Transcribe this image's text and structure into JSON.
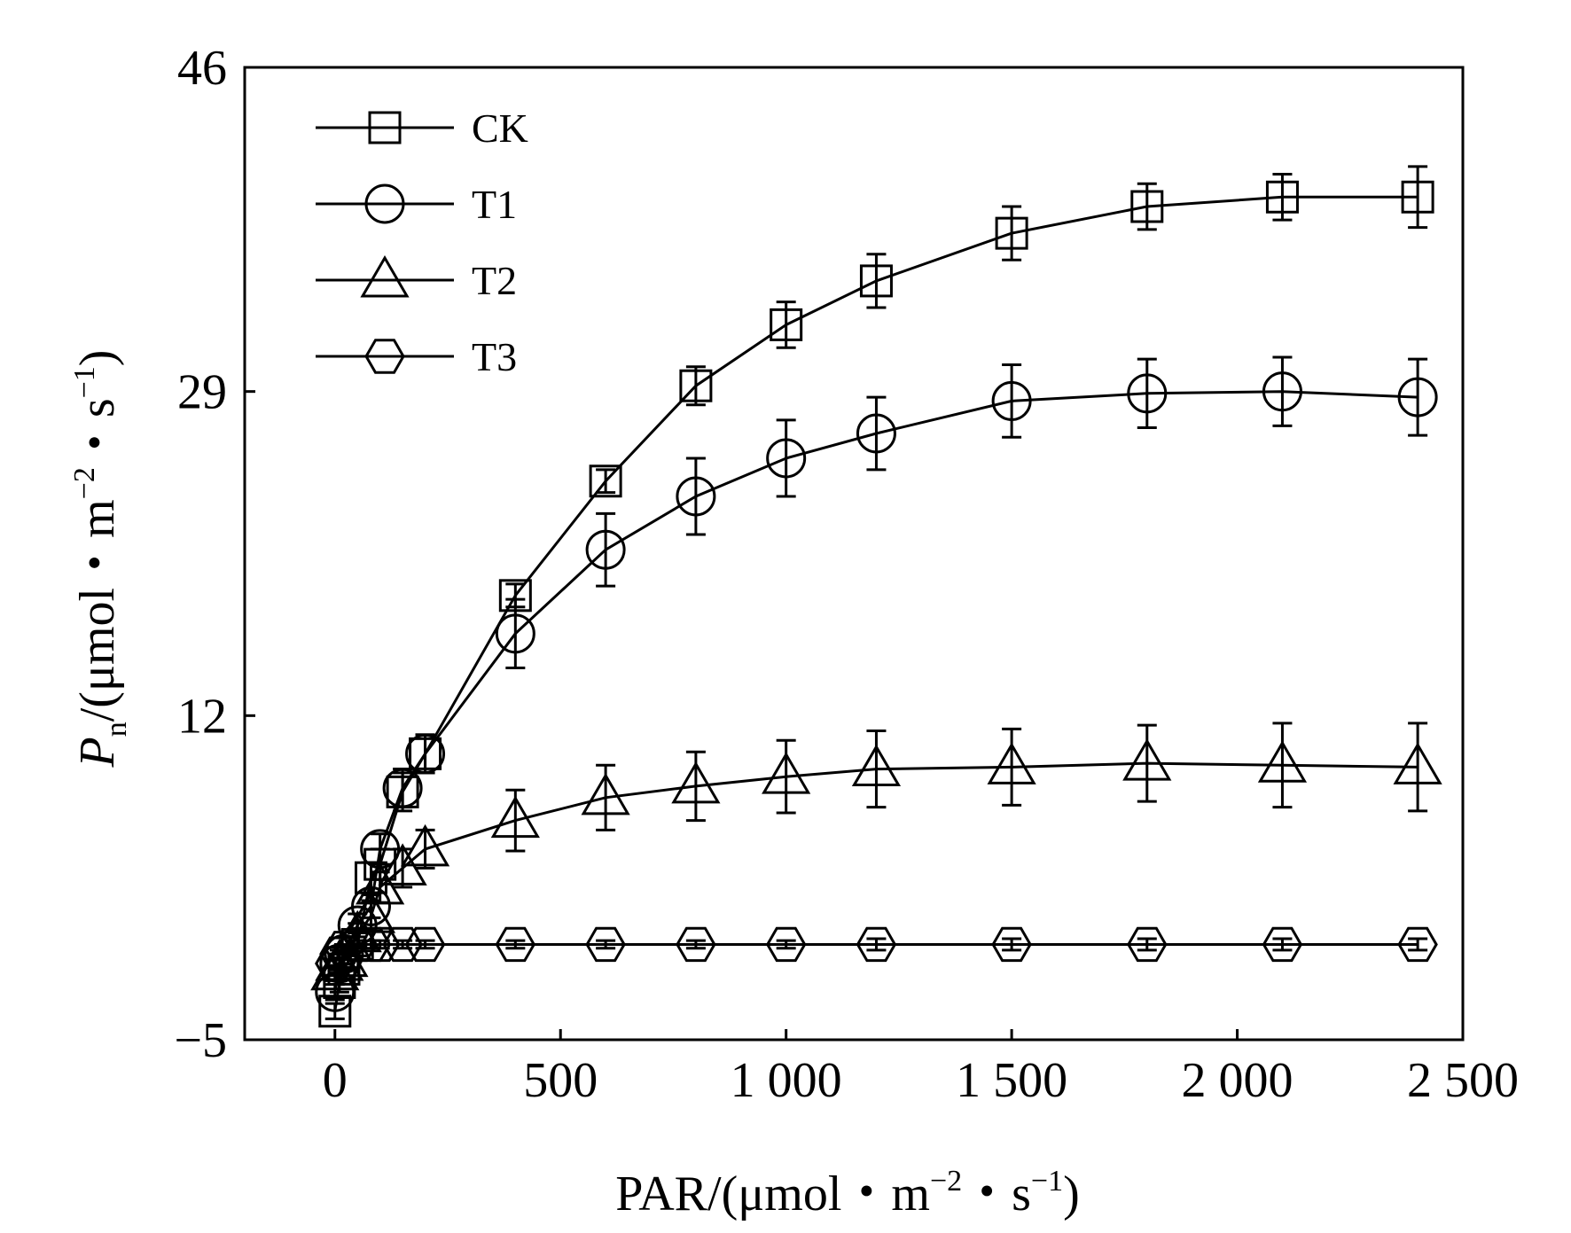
{
  "chart_data": {
    "type": "line",
    "xlabel_parts": {
      "main": "PAR/(μmol・m",
      "exp1": "−2",
      "mid": "・s",
      "exp2": "−1",
      "end": ")"
    },
    "ylabel_parts": {
      "italic": "P",
      "sub": "n",
      "main": "/(μmol・m",
      "exp1": "−2",
      "mid": "・s",
      "exp2": "−1",
      "end": ")"
    },
    "xlim": [
      -200,
      2500
    ],
    "ylim": [
      -5,
      46
    ],
    "x_ticks": [
      0,
      500,
      1000,
      1500,
      2000,
      2500
    ],
    "x_tick_labels": [
      "0",
      "500",
      "1 000",
      "1 500",
      "2 000",
      "2 500"
    ],
    "y_ticks": [
      -5,
      12,
      29,
      46
    ],
    "y_tick_labels": [
      "−5",
      "12",
      "29",
      "46"
    ],
    "legend_position": "top-left",
    "series": [
      {
        "name": "CK",
        "marker": "square",
        "x": [
          0,
          10,
          20,
          50,
          80,
          100,
          150,
          200,
          400,
          600,
          800,
          1000,
          1200,
          1500,
          1800,
          2100,
          2400
        ],
        "y": [
          -3.5,
          -2.0,
          -1.3,
          0.0,
          3.5,
          4.2,
          8.0,
          10.0,
          18.3,
          24.3,
          29.3,
          32.5,
          34.8,
          37.3,
          38.7,
          39.2,
          39.2
        ],
        "err": [
          0.4,
          0.5,
          0.5,
          0.6,
          0.8,
          0.8,
          1.0,
          1.0,
          0.6,
          0.6,
          1.0,
          1.2,
          1.4,
          1.4,
          1.2,
          1.2,
          1.6
        ]
      },
      {
        "name": "T1",
        "marker": "circle",
        "x": [
          0,
          10,
          20,
          50,
          80,
          100,
          150,
          200,
          400,
          600,
          800,
          1000,
          1200,
          1500,
          1800,
          2100,
          2400
        ],
        "y": [
          -2.5,
          -1.0,
          -0.5,
          1.0,
          2.0,
          5.0,
          8.2,
          10.0,
          16.3,
          20.7,
          23.5,
          25.5,
          26.8,
          28.5,
          28.9,
          29.0,
          28.7
        ],
        "err": [
          0.4,
          0.5,
          0.5,
          0.6,
          0.6,
          0.8,
          1.0,
          1.0,
          1.8,
          1.9,
          2.0,
          2.0,
          1.9,
          1.9,
          1.8,
          1.8,
          2.0
        ]
      },
      {
        "name": "T2",
        "marker": "triangle",
        "x": [
          0,
          10,
          20,
          50,
          80,
          100,
          150,
          200,
          400,
          600,
          800,
          1000,
          1200,
          1500,
          1800,
          2100,
          2400
        ],
        "y": [
          -1.5,
          -1.0,
          -0.8,
          0.5,
          1.5,
          3.0,
          4.0,
          5.0,
          6.5,
          7.7,
          8.3,
          8.8,
          9.2,
          9.3,
          9.5,
          9.4,
          9.3
        ],
        "err": [
          0.4,
          0.5,
          0.5,
          0.6,
          0.8,
          0.8,
          1.0,
          1.0,
          1.6,
          1.7,
          1.8,
          1.9,
          2.0,
          2.0,
          2.0,
          2.2,
          2.3
        ]
      },
      {
        "name": "T3",
        "marker": "hexagon",
        "x": [
          0,
          10,
          20,
          50,
          80,
          100,
          150,
          200,
          400,
          600,
          800,
          1000,
          1200,
          1500,
          1800,
          2100,
          2400
        ],
        "y": [
          -1.0,
          -0.5,
          -0.2,
          0.0,
          0.0,
          0.0,
          0.0,
          0.0,
          0.0,
          0.0,
          0.0,
          0.0,
          0.0,
          0.0,
          0.0,
          0.0,
          0.0
        ],
        "err": [
          0.2,
          0.2,
          0.2,
          0.2,
          0.2,
          0.2,
          0.2,
          0.2,
          0.2,
          0.2,
          0.2,
          0.2,
          0.3,
          0.3,
          0.3,
          0.3,
          0.3
        ]
      }
    ]
  }
}
